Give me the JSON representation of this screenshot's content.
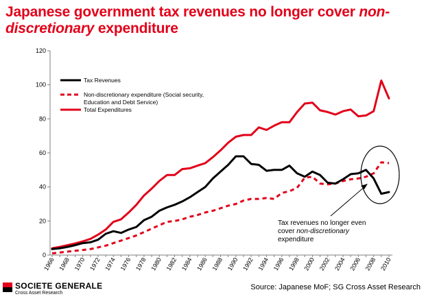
{
  "header": {
    "title_part1": "Japanese government tax revenues no longer cover ",
    "title_italic1": "non-discretionary",
    "title_part2": " expenditure"
  },
  "footer": {
    "brand_name": "SOCIETE GENERALE",
    "brand_sub": "Cross Asset Research",
    "source": "Source: Japanese MoF; SG Cross Asset Research",
    "brand_colors": {
      "red": "#e2001a",
      "black": "#000000"
    }
  },
  "annotation": {
    "line1": "Tax revenues no longer even",
    "line2_prefix": "cover ",
    "line2_italic": "non-discretionary",
    "line3": "expenditure"
  },
  "chart_data": {
    "type": "line",
    "ylim": [
      0,
      120
    ],
    "yticks": [
      0,
      20,
      40,
      60,
      80,
      100,
      120
    ],
    "x": [
      1966,
      1967,
      1968,
      1969,
      1970,
      1971,
      1972,
      1973,
      1974,
      1975,
      1976,
      1977,
      1978,
      1979,
      1980,
      1981,
      1982,
      1983,
      1984,
      1985,
      1986,
      1987,
      1988,
      1989,
      1990,
      1991,
      1992,
      1993,
      1994,
      1995,
      1996,
      1997,
      1998,
      1999,
      2000,
      2001,
      2002,
      2003,
      2004,
      2005,
      2006,
      2007,
      2008,
      2009,
      2010
    ],
    "xticks": [
      "1966",
      "1968",
      "1970",
      "1972",
      "1974",
      "1976",
      "1978",
      "1980",
      "1982",
      "1984",
      "1986",
      "1988",
      "1990",
      "1992",
      "1994",
      "1996",
      "1998",
      "2000",
      "2002",
      "2004",
      "2006",
      "2008",
      "2010"
    ],
    "legend": "top-left",
    "grid": false,
    "series": [
      {
        "name": "Tax Revenues",
        "color": "#000000",
        "style": "solid",
        "values": [
          3.5,
          4.0,
          4.8,
          5.8,
          7.0,
          7.5,
          9.0,
          12.5,
          14.0,
          13.0,
          15.0,
          16.5,
          20.5,
          22.5,
          26.0,
          28.0,
          29.5,
          31.5,
          34.0,
          37.0,
          40.0,
          45.0,
          49.0,
          53.0,
          58.0,
          58.0,
          53.5,
          53.0,
          49.5,
          50.0,
          50.0,
          52.5,
          48.0,
          46.0,
          49.0,
          47.0,
          42.5,
          42.0,
          44.5,
          47.5,
          48.0,
          50.0,
          45.0,
          36.0,
          37.0
        ]
      },
      {
        "name": "Non-discretionary expenditure (Social security, Education and Debt Service)",
        "color": "#e2001a",
        "style": "dashed",
        "values": [
          1.0,
          1.5,
          2.0,
          2.5,
          3.0,
          3.5,
          4.5,
          5.5,
          7.0,
          8.5,
          10.0,
          11.5,
          13.5,
          15.5,
          17.5,
          19.5,
          20.0,
          21.0,
          22.5,
          23.5,
          25.0,
          26.0,
          27.5,
          29.0,
          30.0,
          32.0,
          33.0,
          33.0,
          33.5,
          33.0,
          36.5,
          37.5,
          39.5,
          45.5,
          46.0,
          42.0,
          41.5,
          42.0,
          43.5,
          44.5,
          45.0,
          46.0,
          48.0,
          54.5,
          54.0
        ]
      },
      {
        "name": "Total Expenditures",
        "color": "#e2001a",
        "style": "solid",
        "values": [
          4.0,
          4.8,
          5.8,
          6.8,
          8.0,
          9.5,
          12.0,
          15.0,
          19.5,
          21.0,
          25.0,
          29.5,
          35.0,
          39.0,
          43.5,
          47.0,
          47.0,
          50.5,
          51.0,
          52.5,
          54.0,
          57.5,
          61.5,
          66.0,
          69.5,
          70.5,
          70.5,
          75.0,
          73.5,
          76.0,
          78.0,
          78.0,
          84.0,
          89.0,
          89.5,
          85.0,
          84.0,
          82.5,
          84.5,
          85.5,
          81.5,
          82.0,
          84.5,
          102.5,
          92.0
        ]
      }
    ]
  }
}
